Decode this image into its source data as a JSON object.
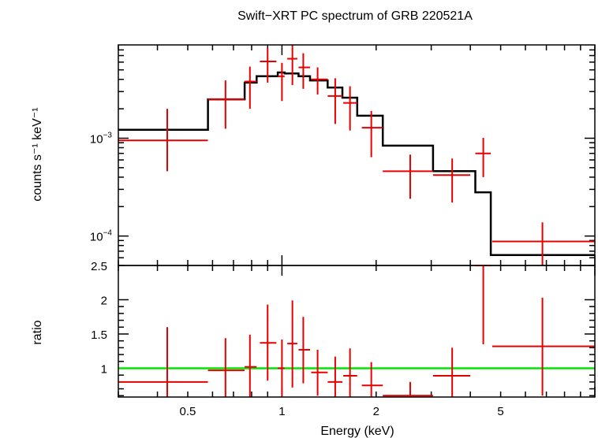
{
  "chart_data": [
    {
      "panel": "top",
      "type": "scatter",
      "title": "Swift−XRT PC spectrum of GRB 220521A",
      "ylabel": "counts s⁻¹ keV⁻¹",
      "xscale": "log",
      "yscale": "log",
      "xlim": [
        0.3,
        10
      ],
      "ylim": [
        5e-05,
        0.009
      ],
      "ytick_labels": [
        {
          "value": 0.001,
          "base": "10",
          "exp": "−3"
        },
        {
          "value": 0.0001,
          "base": "10",
          "exp": "−4"
        }
      ],
      "grid": false,
      "series": [
        {
          "kind": "data",
          "color": "#e60000",
          "points": [
            {
              "x": 0.43,
              "xlo": 0.3,
              "xhi": 0.58,
              "y": 0.00095,
              "ylo": 0.00046,
              "yhi": 0.002
            },
            {
              "x": 0.66,
              "xlo": 0.58,
              "xhi": 0.76,
              "y": 0.0025,
              "ylo": 0.00125,
              "yhi": 0.0039
            },
            {
              "x": 0.79,
              "xlo": 0.76,
              "xhi": 0.83,
              "y": 0.0038,
              "ylo": 0.002,
              "yhi": 0.0054
            },
            {
              "x": 0.9,
              "xlo": 0.85,
              "xhi": 0.96,
              "y": 0.0061,
              "ylo": 0.0037,
              "yhi": 0.0083
            },
            {
              "x": 1.0,
              "xlo": 0.97,
              "xhi": 1.02,
              "y": 0.0043,
              "ylo": 0.0024,
              "yhi": 0.0059
            },
            {
              "x": 1.08,
              "xlo": 1.04,
              "xhi": 1.12,
              "y": 0.0065,
              "ylo": 0.0035,
              "yhi": 0.009
            },
            {
              "x": 1.17,
              "xlo": 1.13,
              "xhi": 1.23,
              "y": 0.0053,
              "ylo": 0.0032,
              "yhi": 0.0074
            },
            {
              "x": 1.3,
              "xlo": 1.24,
              "xhi": 1.4,
              "y": 0.004,
              "ylo": 0.0028,
              "yhi": 0.0053
            },
            {
              "x": 1.48,
              "xlo": 1.4,
              "xhi": 1.56,
              "y": 0.0027,
              "ylo": 0.0014,
              "yhi": 0.0041
            },
            {
              "x": 1.65,
              "xlo": 1.57,
              "xhi": 1.74,
              "y": 0.0023,
              "ylo": 0.0012,
              "yhi": 0.0034
            },
            {
              "x": 1.93,
              "xlo": 1.8,
              "xhi": 2.1,
              "y": 0.00128,
              "ylo": 0.00064,
              "yhi": 0.0019
            },
            {
              "x": 2.57,
              "xlo": 2.1,
              "xhi": 3.04,
              "y": 0.00046,
              "ylo": 0.00024,
              "yhi": 0.00068
            },
            {
              "x": 3.5,
              "xlo": 3.04,
              "xhi": 4.0,
              "y": 0.00042,
              "ylo": 0.00022,
              "yhi": 0.00062
            },
            {
              "x": 4.4,
              "xlo": 4.15,
              "xhi": 4.65,
              "y": 0.0007,
              "ylo": 0.0004,
              "yhi": 0.00101
            },
            {
              "x": 6.8,
              "xlo": 4.7,
              "xhi": 10.0,
              "y": 8.8e-05,
              "ylo": 5e-05,
              "yhi": 0.000138
            }
          ]
        },
        {
          "kind": "model",
          "color": "#000000",
          "edges": [
            0.3,
            0.58,
            0.76,
            0.83,
            0.97,
            1.02,
            1.13,
            1.23,
            1.4,
            1.56,
            1.74,
            2.1,
            3.04,
            4.15,
            4.65,
            10.0
          ],
          "values": [
            0.00122,
            0.0025,
            0.0037,
            0.0043,
            0.0047,
            0.0046,
            0.0043,
            0.0039,
            0.0033,
            0.0026,
            0.0017,
            0.00084,
            0.00046,
            0.00028,
            6.4e-05
          ]
        }
      ]
    },
    {
      "panel": "bottom",
      "type": "scatter",
      "xlabel": "Energy (keV)",
      "ylabel": "ratio",
      "xscale": "log",
      "yscale": "linear",
      "xlim": [
        0.3,
        10
      ],
      "ylim": [
        0.58,
        2.5
      ],
      "xtick_labels": [
        {
          "value": 0.5,
          "label": "0.5"
        },
        {
          "value": 1,
          "label": "1"
        },
        {
          "value": 2,
          "label": "2"
        },
        {
          "value": 5,
          "label": "5"
        }
      ],
      "ytick_labels": [
        {
          "value": 1,
          "label": "1"
        },
        {
          "value": 1.5,
          "label": "1.5"
        },
        {
          "value": 2,
          "label": "2"
        },
        {
          "value": 2.5,
          "label": "2.5"
        }
      ],
      "reference_line": {
        "y": 1,
        "color": "#00e600"
      },
      "grid": false,
      "series": [
        {
          "kind": "data",
          "color": "#e60000",
          "points": [
            {
              "x": 0.43,
              "xlo": 0.3,
              "xhi": 0.58,
              "y": 0.8,
              "ylo": 0.58,
              "yhi": 1.6
            },
            {
              "x": 0.66,
              "xlo": 0.58,
              "xhi": 0.76,
              "y": 0.97,
              "ylo": 0.58,
              "yhi": 1.44
            },
            {
              "x": 0.79,
              "xlo": 0.76,
              "xhi": 0.83,
              "y": 1.02,
              "ylo": 0.58,
              "yhi": 1.49
            },
            {
              "x": 0.9,
              "xlo": 0.85,
              "xhi": 0.96,
              "y": 1.37,
              "ylo": 0.82,
              "yhi": 1.93
            },
            {
              "x": 1.0,
              "xlo": 0.97,
              "xhi": 1.02,
              "y": 1.0,
              "ylo": 0.58,
              "yhi": 1.42
            },
            {
              "x": 1.08,
              "xlo": 1.04,
              "xhi": 1.12,
              "y": 1.36,
              "ylo": 0.72,
              "yhi": 1.99
            },
            {
              "x": 1.17,
              "xlo": 1.13,
              "xhi": 1.23,
              "y": 1.27,
              "ylo": 0.78,
              "yhi": 1.75
            },
            {
              "x": 1.3,
              "xlo": 1.24,
              "xhi": 1.4,
              "y": 0.94,
              "ylo": 0.6,
              "yhi": 1.27
            },
            {
              "x": 1.48,
              "xlo": 1.4,
              "xhi": 1.56,
              "y": 0.8,
              "ylo": 0.58,
              "yhi": 1.17
            },
            {
              "x": 1.65,
              "xlo": 1.57,
              "xhi": 1.74,
              "y": 0.89,
              "ylo": 0.58,
              "yhi": 1.29
            },
            {
              "x": 1.93,
              "xlo": 1.8,
              "xhi": 2.1,
              "y": 0.75,
              "ylo": 0.58,
              "yhi": 1.09
            },
            {
              "x": 2.57,
              "xlo": 2.1,
              "xhi": 3.04,
              "y": 0.6,
              "ylo": 0.58,
              "yhi": 0.8
            },
            {
              "x": 3.5,
              "xlo": 3.04,
              "xhi": 4.0,
              "y": 0.89,
              "ylo": 0.58,
              "yhi": 1.3
            },
            {
              "x": 4.4,
              "xlo": 4.15,
              "xhi": 4.65,
              "y": 2.5,
              "ylo": 1.35,
              "yhi": 2.5
            },
            {
              "x": 6.8,
              "xlo": 4.7,
              "xhi": 10.0,
              "y": 1.32,
              "ylo": 0.6,
              "yhi": 2.03
            }
          ]
        }
      ]
    }
  ]
}
